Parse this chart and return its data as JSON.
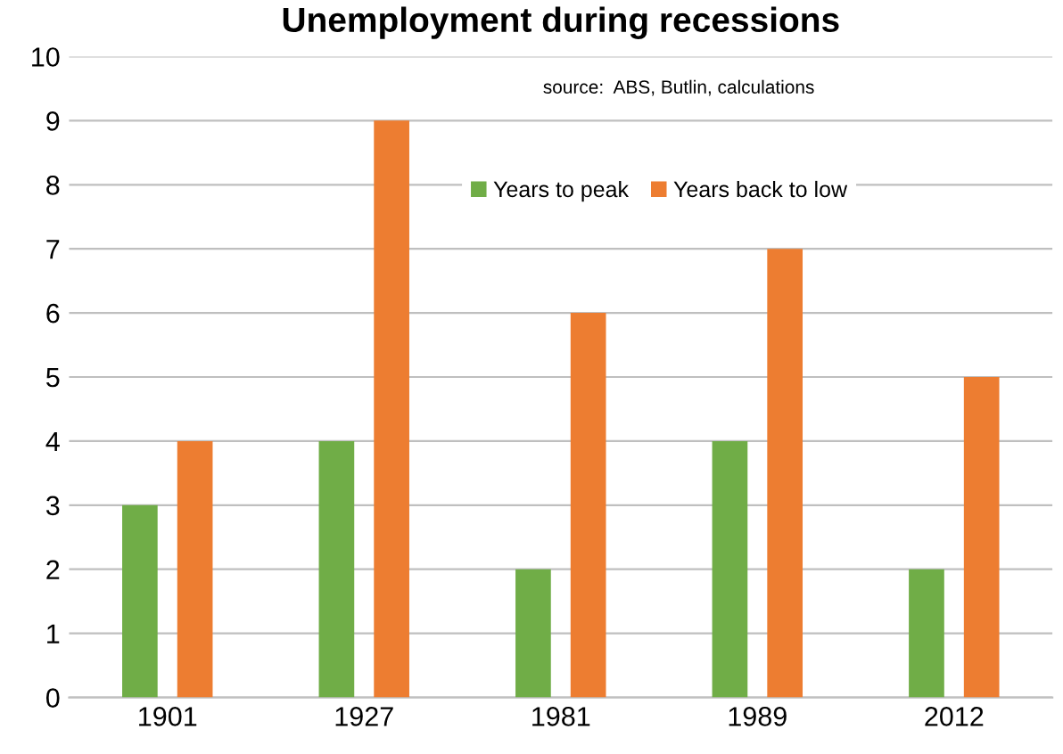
{
  "chart_data": {
    "type": "bar",
    "title": "Unemployment during recessions",
    "categories": [
      "1901",
      "1927",
      "1981",
      "1989",
      "2012"
    ],
    "series": [
      {
        "name": "Years to peak",
        "color": "#70ad47",
        "values": [
          3,
          4,
          2,
          4,
          2
        ]
      },
      {
        "name": "Years back to low",
        "color": "#ed7d31",
        "values": [
          4,
          9,
          6,
          7,
          5
        ]
      }
    ],
    "ylim": [
      0,
      10
    ],
    "yticks": [
      0,
      1,
      2,
      3,
      4,
      5,
      6,
      7,
      8,
      9,
      10
    ],
    "grid": "y",
    "legend": "top",
    "annotations": [
      "source:  ABS, Butlin, calculations"
    ]
  }
}
